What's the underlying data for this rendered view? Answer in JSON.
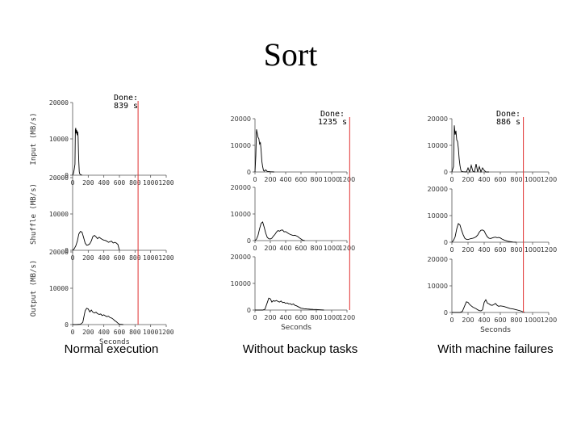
{
  "slide": {
    "title": "Sort"
  },
  "colors": {
    "done_line": "#e03030",
    "trace": "#000000",
    "axis": "#555555"
  },
  "chart_data": [
    {
      "type": "line",
      "caption": "Normal execution",
      "done_label": "Done:",
      "done_time": "839 s",
      "done_x": 839,
      "xlim": [
        0,
        1200
      ],
      "x_ticks": [
        0,
        200,
        400,
        600,
        800,
        1000,
        1200
      ],
      "ylim": [
        0,
        20000
      ],
      "y_ticks": [
        0,
        10000,
        20000
      ],
      "xlabel": "Seconds",
      "panels": [
        {
          "ylabel": "Input (MB/s)",
          "x": [
            0,
            10,
            20,
            30,
            35,
            40,
            45,
            50,
            55,
            60,
            65,
            70,
            75,
            80,
            85,
            90,
            100,
            110,
            120
          ],
          "y": [
            0,
            500,
            1500,
            3000,
            12500,
            13000,
            11500,
            12500,
            12000,
            11000,
            12000,
            10500,
            6000,
            3500,
            1000,
            400,
            200,
            100,
            0
          ]
        },
        {
          "ylabel": "Shuffle (MB/s)",
          "x": [
            0,
            20,
            40,
            60,
            80,
            100,
            120,
            140,
            160,
            180,
            200,
            220,
            240,
            260,
            280,
            300,
            320,
            340,
            360,
            380,
            400,
            420,
            440,
            460,
            480,
            500,
            520,
            540,
            560,
            580,
            600
          ],
          "y": [
            0,
            400,
            1200,
            2500,
            4500,
            5200,
            5000,
            3600,
            2000,
            1400,
            1500,
            1800,
            2600,
            3800,
            4100,
            3700,
            3200,
            3600,
            3300,
            3000,
            2800,
            2700,
            2500,
            2200,
            2400,
            2500,
            2000,
            2200,
            2000,
            1600,
            0
          ]
        },
        {
          "ylabel": "Output (MB/s)",
          "x": [
            0,
            50,
            100,
            130,
            160,
            180,
            200,
            220,
            240,
            260,
            280,
            300,
            320,
            340,
            360,
            380,
            400,
            420,
            440,
            460,
            480,
            500,
            520,
            540,
            560,
            580,
            600,
            650
          ],
          "y": [
            0,
            0,
            100,
            600,
            3800,
            4500,
            4300,
            3500,
            4000,
            3400,
            3200,
            3400,
            3000,
            2800,
            2900,
            2500,
            2700,
            2400,
            2200,
            2300,
            1900,
            1800,
            1500,
            1100,
            800,
            400,
            100,
            0
          ]
        }
      ]
    },
    {
      "type": "line",
      "caption": "Without backup tasks",
      "done_label": "Done:",
      "done_time": "1235 s",
      "done_x": 1235,
      "xlim": [
        0,
        1200
      ],
      "x_ticks": [
        0,
        200,
        400,
        600,
        800,
        1000,
        1200
      ],
      "ylim": [
        0,
        20000
      ],
      "y_ticks": [
        0,
        10000,
        20000
      ],
      "xlabel": "Seconds",
      "panels": [
        {
          "x": [
            0,
            10,
            20,
            30,
            40,
            50,
            60,
            70,
            80,
            90,
            100,
            110,
            120,
            140,
            160,
            200,
            250
          ],
          "y": [
            0,
            6000,
            16000,
            14500,
            13000,
            12500,
            10500,
            11000,
            8000,
            4000,
            2000,
            600,
            300,
            800,
            200,
            100,
            0
          ]
        },
        {
          "x": [
            0,
            20,
            40,
            60,
            80,
            100,
            120,
            140,
            160,
            180,
            200,
            220,
            240,
            260,
            280,
            300,
            320,
            340,
            360,
            380,
            400,
            420,
            440,
            460,
            480,
            500,
            520,
            540,
            560,
            580,
            600,
            620,
            650
          ],
          "y": [
            0,
            600,
            2000,
            4500,
            6500,
            7000,
            5000,
            2800,
            1200,
            700,
            600,
            900,
            1700,
            2300,
            3200,
            3800,
            3500,
            3900,
            4000,
            3300,
            3400,
            3000,
            2600,
            2300,
            2100,
            1900,
            2000,
            1800,
            1500,
            1000,
            600,
            200,
            0
          ]
        },
        {
          "x": [
            0,
            100,
            130,
            160,
            180,
            200,
            220,
            240,
            260,
            280,
            300,
            320,
            340,
            360,
            380,
            400,
            420,
            440,
            460,
            480,
            500,
            520,
            540,
            560,
            580,
            600,
            640,
            680,
            720,
            760,
            800,
            850,
            900
          ],
          "y": [
            0,
            0,
            300,
            2800,
            4500,
            4200,
            3000,
            3500,
            3300,
            3600,
            3200,
            3000,
            3400,
            2800,
            2900,
            2500,
            2700,
            2300,
            2400,
            2000,
            2300,
            1800,
            1600,
            1300,
            1000,
            700,
            500,
            400,
            300,
            250,
            200,
            100,
            0
          ]
        }
      ]
    },
    {
      "type": "line",
      "caption": "With machine failures",
      "done_label": "Done:",
      "done_time": "886 s",
      "done_x": 886,
      "xlim": [
        0,
        1200
      ],
      "x_ticks": [
        0,
        200,
        400,
        600,
        800,
        1000,
        1200
      ],
      "ylim": [
        0,
        20000
      ],
      "y_ticks": [
        0,
        10000,
        20000
      ],
      "xlabel": "Seconds",
      "panels": [
        {
          "x": [
            0,
            20,
            30,
            40,
            50,
            60,
            70,
            80,
            90,
            100,
            110,
            120,
            140,
            180,
            200,
            220,
            240,
            260,
            280,
            300,
            320,
            340,
            360,
            380,
            400,
            420,
            460
          ],
          "y": [
            0,
            2000,
            17500,
            14000,
            15500,
            12000,
            11500,
            9000,
            5000,
            2500,
            800,
            200,
            100,
            0,
            1500,
            0,
            2500,
            300,
            0,
            3000,
            0,
            2000,
            0,
            1500,
            600,
            0,
            0
          ]
        },
        {
          "x": [
            0,
            20,
            40,
            60,
            80,
            100,
            120,
            140,
            160,
            180,
            200,
            220,
            240,
            260,
            280,
            300,
            320,
            340,
            360,
            380,
            400,
            420,
            440,
            460,
            480,
            500,
            520,
            540,
            560,
            580,
            600,
            620,
            650,
            700,
            750,
            800
          ],
          "y": [
            0,
            700,
            2000,
            5000,
            7000,
            6500,
            4500,
            2800,
            1500,
            1100,
            1000,
            1200,
            1400,
            1500,
            1700,
            2100,
            2700,
            3800,
            4500,
            4600,
            4200,
            3000,
            2000,
            1500,
            1400,
            1600,
            1800,
            1900,
            1700,
            1800,
            1600,
            1200,
            800,
            300,
            100,
            0
          ]
        },
        {
          "x": [
            0,
            100,
            130,
            160,
            180,
            200,
            220,
            240,
            260,
            280,
            300,
            320,
            340,
            360,
            380,
            400,
            420,
            440,
            460,
            480,
            500,
            520,
            540,
            560,
            580,
            600,
            640,
            680,
            720,
            760,
            800,
            850,
            900
          ],
          "y": [
            0,
            0,
            400,
            2600,
            4000,
            3800,
            3000,
            2500,
            2000,
            1700,
            1400,
            1000,
            700,
            600,
            1000,
            3800,
            4800,
            3500,
            3200,
            2800,
            2700,
            3000,
            3400,
            2700,
            2300,
            2500,
            2300,
            1900,
            1500,
            1300,
            1000,
            600,
            0
          ]
        }
      ]
    }
  ]
}
